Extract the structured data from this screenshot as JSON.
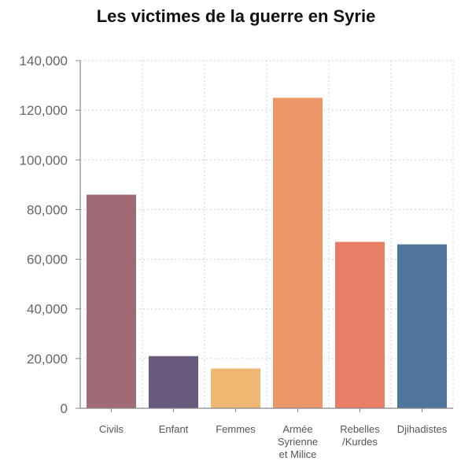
{
  "chart_data": {
    "type": "bar",
    "title": "Les victimes de la guerre en Syrie",
    "categories": [
      [
        "Civils"
      ],
      [
        "Enfant"
      ],
      [
        "Femmes"
      ],
      [
        "Armée",
        "Syrienne",
        "et Milice"
      ],
      [
        "Rebelles",
        "/Kurdes"
      ],
      [
        "Djihadistes"
      ]
    ],
    "values": [
      86000,
      21000,
      16000,
      125000,
      67000,
      66000
    ],
    "colors": [
      "#a06a76",
      "#685a7c",
      "#efb872",
      "#ea9666",
      "#e97e66",
      "#50759a"
    ],
    "ylim": [
      0,
      140000
    ],
    "yticks": [
      "0",
      "20,000",
      "40,000",
      "60,000",
      "80,000",
      "100,000",
      "120,000",
      "140,000"
    ],
    "ytick_values": [
      0,
      20000,
      40000,
      60000,
      80000,
      100000,
      120000,
      140000
    ],
    "grid": true,
    "xlabel": "",
    "ylabel": ""
  }
}
